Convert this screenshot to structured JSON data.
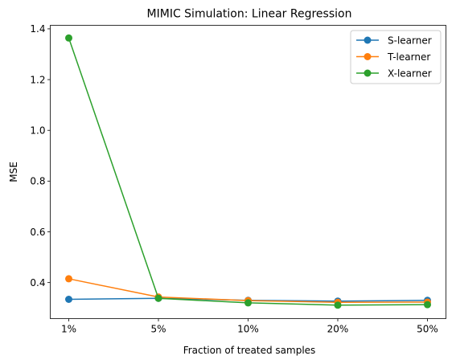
{
  "chart_data": {
    "type": "line",
    "title": "MIMIC Simulation: Linear Regression",
    "xlabel": "Fraction of treated samples",
    "ylabel": "MSE",
    "categories": [
      "1%",
      "5%",
      "10%",
      "20%",
      "50%"
    ],
    "ylim": [
      0.258,
      1.414
    ],
    "yticks": [
      0.4,
      0.6,
      0.8,
      1.0,
      1.2,
      1.4
    ],
    "ytick_labels": [
      "0.4",
      "0.6",
      "0.8",
      "1.0",
      "1.2",
      "1.4"
    ],
    "grid": false,
    "legend_position": "top-right",
    "series": [
      {
        "name": "S-learner",
        "color": "#1f77b4",
        "values": [
          0.334,
          0.338,
          0.33,
          0.327,
          0.33
        ]
      },
      {
        "name": "T-learner",
        "color": "#ff7f0e",
        "values": [
          0.415,
          0.343,
          0.329,
          0.322,
          0.323
        ]
      },
      {
        "name": "X-learner",
        "color": "#2ca02c",
        "values": [
          1.364,
          0.338,
          0.32,
          0.311,
          0.313
        ]
      }
    ]
  }
}
